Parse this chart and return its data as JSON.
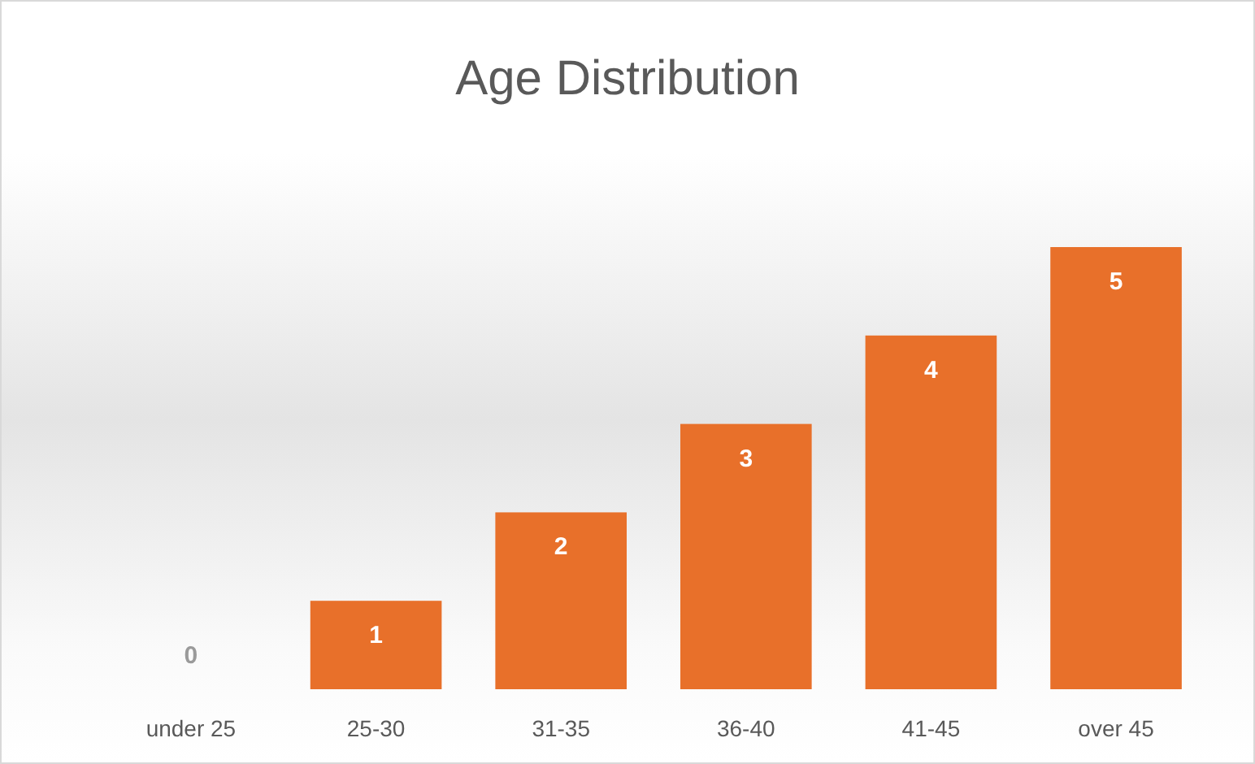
{
  "chart_data": {
    "type": "bar",
    "title": "Age Distribution",
    "categories": [
      "under 25",
      "25-30",
      "31-35",
      "36-40",
      "41-45",
      "over 45"
    ],
    "values": [
      0,
      1,
      2,
      3,
      4,
      5
    ],
    "color": "#e8702a",
    "data_labels": true
  }
}
